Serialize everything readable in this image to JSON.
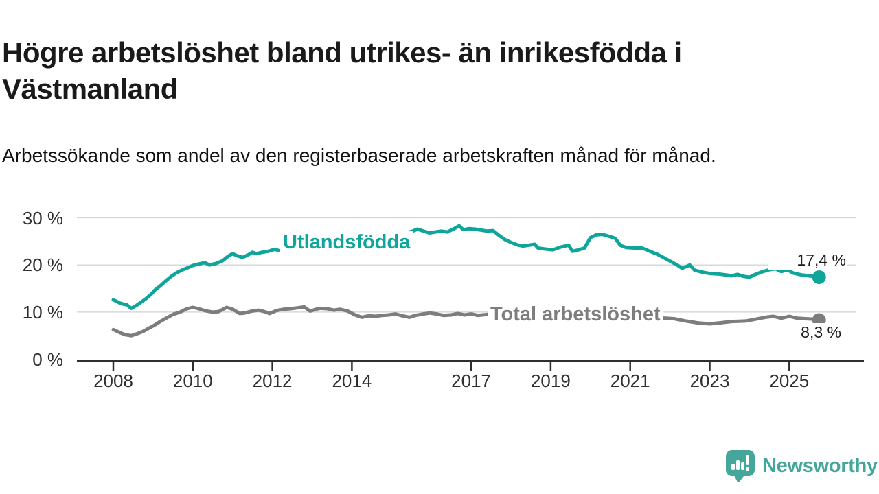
{
  "title": "Högre arbetslöshet bland utrikes- än inrikesfödda i Västmanland",
  "subtitle": "Arbetssökande som andel av den registerbaserade arbetskraften månad för månad.",
  "branding": {
    "logo_text": "Newsworthy",
    "logo_icon": "bar-chart-speech-bubble-icon",
    "logo_color": "#45a69b"
  },
  "colors": {
    "series_foreign_born": "#10a59b",
    "series_total": "#7d7d7d",
    "gridline": "#d9d9d9",
    "axis": "#2e2e2e",
    "text_dark": "#1a1a1a"
  },
  "chart_data": {
    "type": "line",
    "title": "Högre arbetslöshet bland utrikes- än inrikesfödda i Västmanland",
    "subtitle": "Arbetssökande som andel av den registerbaserade arbetskraften månad för månad.",
    "xlabel": "",
    "ylabel": "",
    "grid": "horizontal",
    "legend_position": "inline-labels",
    "xlim": [
      2007.1,
      2026.9
    ],
    "ylim": [
      0,
      32
    ],
    "yticks": [
      {
        "label": "0 %",
        "value": 0
      },
      {
        "label": "10 %",
        "value": 10
      },
      {
        "label": "20 %",
        "value": 20
      },
      {
        "label": "30 %",
        "value": 30
      }
    ],
    "xticks": [
      {
        "label": "2008",
        "year": 2008
      },
      {
        "label": "2010",
        "year": 2010
      },
      {
        "label": "2012",
        "year": 2012
      },
      {
        "label": "2014",
        "year": 2014
      },
      {
        "label": "2017",
        "year": 2017
      },
      {
        "label": "2019",
        "year": 2019
      },
      {
        "label": "2021",
        "year": 2021
      },
      {
        "label": "2023",
        "year": 2023
      },
      {
        "label": "2025",
        "year": 2025
      }
    ],
    "series": [
      {
        "name": "Utlandsfödda",
        "color": "#10a59b",
        "end_label": "17,4 %",
        "end_value": 17.4,
        "points": [
          [
            2008.0,
            12.6
          ],
          [
            2008.08,
            12.3
          ],
          [
            2008.17,
            11.9
          ],
          [
            2008.25,
            11.7
          ],
          [
            2008.33,
            11.6
          ],
          [
            2008.45,
            10.8
          ],
          [
            2008.58,
            11.4
          ],
          [
            2008.7,
            12.1
          ],
          [
            2008.83,
            12.9
          ],
          [
            2008.95,
            13.8
          ],
          [
            2009.05,
            14.7
          ],
          [
            2009.2,
            15.7
          ],
          [
            2009.33,
            16.7
          ],
          [
            2009.46,
            17.6
          ],
          [
            2009.6,
            18.4
          ],
          [
            2009.75,
            19.0
          ],
          [
            2009.9,
            19.5
          ],
          [
            2010.0,
            19.9
          ],
          [
            2010.15,
            20.2
          ],
          [
            2010.3,
            20.5
          ],
          [
            2010.42,
            20.0
          ],
          [
            2010.58,
            20.3
          ],
          [
            2010.75,
            20.9
          ],
          [
            2010.88,
            21.8
          ],
          [
            2011.0,
            22.4
          ],
          [
            2011.1,
            22.0
          ],
          [
            2011.25,
            21.6
          ],
          [
            2011.4,
            22.2
          ],
          [
            2011.5,
            22.7
          ],
          [
            2011.6,
            22.4
          ],
          [
            2011.75,
            22.7
          ],
          [
            2011.9,
            22.9
          ],
          [
            2012.05,
            23.3
          ],
          [
            2012.2,
            23.0
          ],
          [
            2012.35,
            23.4
          ],
          [
            2012.5,
            23.2
          ],
          [
            2012.65,
            23.5
          ],
          [
            2012.8,
            23.3
          ],
          [
            2013.0,
            23.5
          ],
          [
            2013.25,
            23.7
          ],
          [
            2013.5,
            23.9
          ],
          [
            2013.75,
            24.2
          ],
          [
            2014.0,
            24.6
          ],
          [
            2014.25,
            25.1
          ],
          [
            2014.5,
            25.7
          ],
          [
            2014.75,
            26.1
          ],
          [
            2015.0,
            26.4
          ],
          [
            2015.25,
            26.7
          ],
          [
            2015.5,
            27.1
          ],
          [
            2015.65,
            27.6
          ],
          [
            2015.8,
            27.2
          ],
          [
            2015.95,
            26.8
          ],
          [
            2016.1,
            27.0
          ],
          [
            2016.25,
            27.2
          ],
          [
            2016.4,
            27.0
          ],
          [
            2016.55,
            27.6
          ],
          [
            2016.7,
            28.3
          ],
          [
            2016.8,
            27.5
          ],
          [
            2016.95,
            27.7
          ],
          [
            2017.1,
            27.6
          ],
          [
            2017.25,
            27.4
          ],
          [
            2017.4,
            27.2
          ],
          [
            2017.55,
            27.3
          ],
          [
            2017.7,
            26.3
          ],
          [
            2017.85,
            25.4
          ],
          [
            2018.0,
            24.8
          ],
          [
            2018.15,
            24.3
          ],
          [
            2018.3,
            24.0
          ],
          [
            2018.45,
            24.2
          ],
          [
            2018.6,
            24.4
          ],
          [
            2018.68,
            23.6
          ],
          [
            2018.85,
            23.4
          ],
          [
            2019.05,
            23.2
          ],
          [
            2019.25,
            23.8
          ],
          [
            2019.45,
            24.2
          ],
          [
            2019.55,
            22.9
          ],
          [
            2019.7,
            23.2
          ],
          [
            2019.85,
            23.6
          ],
          [
            2020.0,
            25.8
          ],
          [
            2020.15,
            26.4
          ],
          [
            2020.3,
            26.5
          ],
          [
            2020.5,
            26.0
          ],
          [
            2020.62,
            25.7
          ],
          [
            2020.75,
            24.2
          ],
          [
            2020.9,
            23.7
          ],
          [
            2021.1,
            23.6
          ],
          [
            2021.3,
            23.6
          ],
          [
            2021.5,
            22.9
          ],
          [
            2021.7,
            22.2
          ],
          [
            2021.9,
            21.3
          ],
          [
            2022.05,
            20.6
          ],
          [
            2022.2,
            19.9
          ],
          [
            2022.3,
            19.3
          ],
          [
            2022.42,
            19.7
          ],
          [
            2022.5,
            20.0
          ],
          [
            2022.62,
            18.9
          ],
          [
            2022.8,
            18.5
          ],
          [
            2023.0,
            18.2
          ],
          [
            2023.2,
            18.1
          ],
          [
            2023.4,
            17.9
          ],
          [
            2023.55,
            17.7
          ],
          [
            2023.7,
            18.0
          ],
          [
            2023.85,
            17.6
          ],
          [
            2024.0,
            17.4
          ],
          [
            2024.15,
            18.0
          ],
          [
            2024.3,
            18.5
          ],
          [
            2024.5,
            19.0
          ],
          [
            2024.65,
            19.2
          ],
          [
            2024.8,
            18.6
          ],
          [
            2024.95,
            19.0
          ],
          [
            2025.1,
            18.3
          ],
          [
            2025.3,
            17.9
          ],
          [
            2025.5,
            17.7
          ],
          [
            2025.75,
            17.4
          ]
        ]
      },
      {
        "name": "Total arbetslöshet",
        "color": "#7d7d7d",
        "end_label": "8,3 %",
        "end_value": 8.3,
        "points": [
          [
            2008.0,
            6.3
          ],
          [
            2008.15,
            5.7
          ],
          [
            2008.3,
            5.2
          ],
          [
            2008.45,
            5.0
          ],
          [
            2008.6,
            5.4
          ],
          [
            2008.75,
            5.9
          ],
          [
            2008.9,
            6.6
          ],
          [
            2009.05,
            7.3
          ],
          [
            2009.2,
            8.1
          ],
          [
            2009.35,
            8.8
          ],
          [
            2009.5,
            9.5
          ],
          [
            2009.68,
            10.0
          ],
          [
            2009.85,
            10.7
          ],
          [
            2010.0,
            11.0
          ],
          [
            2010.15,
            10.7
          ],
          [
            2010.3,
            10.3
          ],
          [
            2010.5,
            10.0
          ],
          [
            2010.65,
            10.1
          ],
          [
            2010.85,
            11.0
          ],
          [
            2011.0,
            10.6
          ],
          [
            2011.18,
            9.7
          ],
          [
            2011.3,
            9.8
          ],
          [
            2011.48,
            10.2
          ],
          [
            2011.65,
            10.4
          ],
          [
            2011.8,
            10.1
          ],
          [
            2011.93,
            9.7
          ],
          [
            2012.1,
            10.3
          ],
          [
            2012.28,
            10.6
          ],
          [
            2012.46,
            10.7
          ],
          [
            2012.63,
            10.9
          ],
          [
            2012.8,
            11.1
          ],
          [
            2012.95,
            10.2
          ],
          [
            2013.1,
            10.6
          ],
          [
            2013.2,
            10.8
          ],
          [
            2013.38,
            10.7
          ],
          [
            2013.55,
            10.4
          ],
          [
            2013.7,
            10.6
          ],
          [
            2013.9,
            10.2
          ],
          [
            2014.08,
            9.4
          ],
          [
            2014.25,
            8.9
          ],
          [
            2014.42,
            9.2
          ],
          [
            2014.6,
            9.1
          ],
          [
            2014.76,
            9.3
          ],
          [
            2014.93,
            9.4
          ],
          [
            2015.1,
            9.6
          ],
          [
            2015.27,
            9.2
          ],
          [
            2015.45,
            8.9
          ],
          [
            2015.6,
            9.3
          ],
          [
            2015.8,
            9.6
          ],
          [
            2015.96,
            9.8
          ],
          [
            2016.13,
            9.6
          ],
          [
            2016.3,
            9.3
          ],
          [
            2016.5,
            9.4
          ],
          [
            2016.66,
            9.7
          ],
          [
            2016.83,
            9.4
          ],
          [
            2017.0,
            9.6
          ],
          [
            2017.17,
            9.3
          ],
          [
            2017.4,
            9.5
          ],
          [
            2017.6,
            9.4
          ],
          [
            2017.8,
            9.3
          ],
          [
            2018.1,
            9.2
          ],
          [
            2018.4,
            9.0
          ],
          [
            2018.7,
            8.9
          ],
          [
            2019.0,
            8.8
          ],
          [
            2019.3,
            8.9
          ],
          [
            2019.6,
            8.8
          ],
          [
            2019.9,
            9.1
          ],
          [
            2020.1,
            9.5
          ],
          [
            2020.4,
            9.6
          ],
          [
            2020.7,
            9.4
          ],
          [
            2021.0,
            9.1
          ],
          [
            2021.3,
            8.9
          ],
          [
            2021.6,
            8.8
          ],
          [
            2021.9,
            8.7
          ],
          [
            2022.1,
            8.6
          ],
          [
            2022.4,
            8.1
          ],
          [
            2022.7,
            7.7
          ],
          [
            2023.0,
            7.5
          ],
          [
            2023.25,
            7.7
          ],
          [
            2023.55,
            8.0
          ],
          [
            2023.9,
            8.1
          ],
          [
            2024.1,
            8.4
          ],
          [
            2024.4,
            8.9
          ],
          [
            2024.6,
            9.1
          ],
          [
            2024.8,
            8.7
          ],
          [
            2025.0,
            9.1
          ],
          [
            2025.2,
            8.7
          ],
          [
            2025.4,
            8.6
          ],
          [
            2025.6,
            8.5
          ],
          [
            2025.75,
            8.3
          ]
        ]
      }
    ]
  }
}
